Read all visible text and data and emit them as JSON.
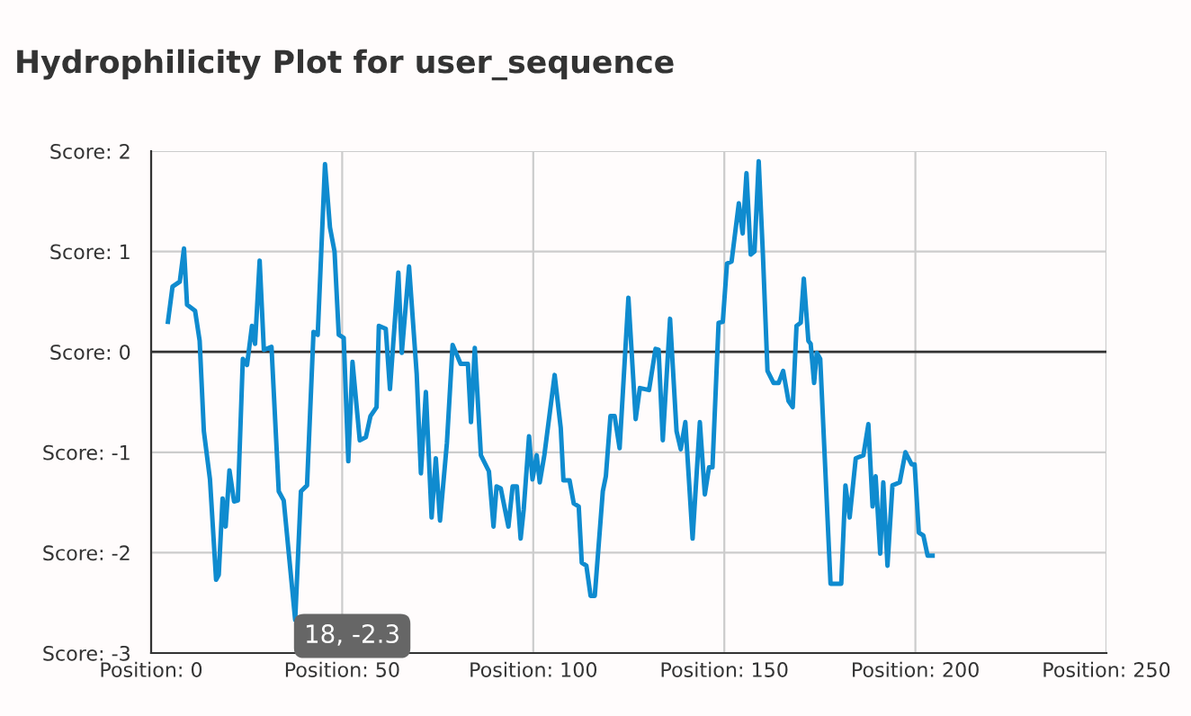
{
  "chart_data": {
    "type": "line",
    "title": "Hydrophilicity Plot for user_sequence",
    "series": [
      {
        "color": "#0f8bcf",
        "x": [
          4.4,
          5.6,
          7.5,
          8.6,
          9.4,
          11.5,
          12.7,
          13.8,
          15.4,
          17,
          17.7,
          18.7,
          19.5,
          20.5,
          21.7,
          22.7,
          24,
          25.1,
          26.4,
          27.2,
          28.4,
          29.5,
          31.5,
          33.4,
          34.7,
          37.7,
          39.2,
          40.8,
          42.5,
          43.6,
          45.5,
          46.8,
          48,
          49.1,
          50.4,
          51.6,
          52.7,
          54.6,
          56.2,
          57.4,
          59,
          59.6,
          61.4,
          62.5,
          64.7,
          65.6,
          67.5,
          69.5,
          70.6,
          71.9,
          73.4,
          74.5,
          75.6,
          77.4,
          78.9,
          81,
          82.9,
          83.7,
          84.7,
          86.3,
          88.4,
          89.6,
          90.4,
          91.5,
          93.5,
          94.6,
          95.7,
          96.7,
          97.5,
          98.9,
          99.8,
          100.9,
          101.7,
          102.9,
          105.6,
          107.2,
          107.9,
          109.5,
          110.6,
          111.9,
          112.7,
          113.9,
          115,
          116.1,
          118.2,
          119,
          120.2,
          121.3,
          122.6,
          124.9,
          126.8,
          127.9,
          130.3,
          132,
          132.8,
          133.9,
          135.8,
          137.5,
          138.6,
          139.8,
          141.7,
          143.6,
          144.9,
          146,
          146.9,
          148.5,
          149.6,
          150.7,
          151.9,
          153.8,
          154.8,
          155.8,
          156.9,
          157.9,
          159,
          160.1,
          161.3,
          162.9,
          164.2,
          165.4,
          166.8,
          167.9,
          168.9,
          170,
          170.8,
          172,
          172.6,
          173.5,
          174.2,
          175.1,
          177.8,
          180.6,
          181.7,
          182.8,
          184.4,
          186.4,
          187.7,
          188.8,
          189.6,
          190.8,
          191.6,
          192.7,
          194,
          195.9,
          197.4,
          199,
          199.8,
          200.9,
          202.1,
          203.2,
          204.5
        ],
        "values": [
          0.3,
          0.65,
          0.7,
          1.03,
          0.47,
          0.41,
          0.11,
          -0.79,
          -1.27,
          -2.27,
          -2.22,
          -1.46,
          -1.74,
          -1.18,
          -1.49,
          -1.48,
          -0.07,
          -0.13,
          0.26,
          0.08,
          0.91,
          0.02,
          0.05,
          -1.39,
          -1.48,
          -2.67,
          -1.39,
          -1.33,
          0.2,
          0.17,
          1.87,
          1.24,
          1.0,
          0.17,
          0.14,
          -1.09,
          -0.1,
          -0.88,
          -0.85,
          -0.64,
          -0.55,
          0.26,
          0.23,
          -0.37,
          0.79,
          -0.01,
          0.85,
          -0.22,
          -1.21,
          -0.4,
          -1.65,
          -1.06,
          -1.68,
          -0.91,
          0.07,
          -0.12,
          -0.12,
          -0.7,
          0.04,
          -1.03,
          -1.19,
          -1.74,
          -1.34,
          -1.36,
          -1.74,
          -1.34,
          -1.34,
          -1.86,
          -1.57,
          -0.84,
          -1.27,
          -1.03,
          -1.3,
          -1.03,
          -0.23,
          -0.76,
          -1.28,
          -1.28,
          -1.51,
          -1.54,
          -2.1,
          -2.13,
          -2.43,
          -2.43,
          -1.39,
          -1.24,
          -0.64,
          -0.64,
          -0.96,
          0.54,
          -0.67,
          -0.36,
          -0.38,
          0.03,
          0.02,
          -0.88,
          0.33,
          -0.79,
          -0.97,
          -0.7,
          -1.86,
          -0.7,
          -1.42,
          -1.15,
          -1.15,
          0.29,
          0.3,
          0.88,
          0.9,
          1.48,
          1.18,
          1.78,
          0.97,
          1.0,
          1.9,
          0.97,
          -0.19,
          -0.31,
          -0.31,
          -0.19,
          -0.49,
          -0.55,
          0.26,
          0.29,
          0.73,
          0.11,
          0.08,
          -0.31,
          -0.01,
          -0.07,
          -2.31,
          -2.31,
          -1.33,
          -1.65,
          -1.06,
          -1.03,
          -0.72,
          -1.54,
          -1.24,
          -2.01,
          -1.3,
          -2.13,
          -1.33,
          -1.3,
          -1.0,
          -1.12,
          -1.12,
          -1.8,
          -1.83,
          -2.03,
          -2.03
        ]
      }
    ],
    "xlim": [
      0,
      250
    ],
    "xticks": [
      {
        "value": 0,
        "label": "Position: 0"
      },
      {
        "value": 50,
        "label": "Position: 50"
      },
      {
        "value": 100,
        "label": "Position: 100"
      },
      {
        "value": 150,
        "label": "Position: 150"
      },
      {
        "value": 200,
        "label": "Position: 200"
      },
      {
        "value": 250,
        "label": "Position: 250"
      }
    ],
    "ylim": [
      -3,
      2
    ],
    "yticks": [
      {
        "value": -3,
        "label": "Score: -3"
      },
      {
        "value": -2,
        "label": "Score: -2"
      },
      {
        "value": -1,
        "label": "Score: -1"
      },
      {
        "value": 0,
        "label": "Score: 0"
      },
      {
        "value": 1,
        "label": "Score: 1"
      },
      {
        "value": 2,
        "label": "Score: 2"
      }
    ],
    "ref_lines": [
      {
        "axis": "y",
        "value": 0,
        "color": "#333333"
      }
    ],
    "annotations": [
      "18, -2.3"
    ],
    "grid": true,
    "legend": false,
    "marker": "none",
    "line_style": "solid"
  }
}
